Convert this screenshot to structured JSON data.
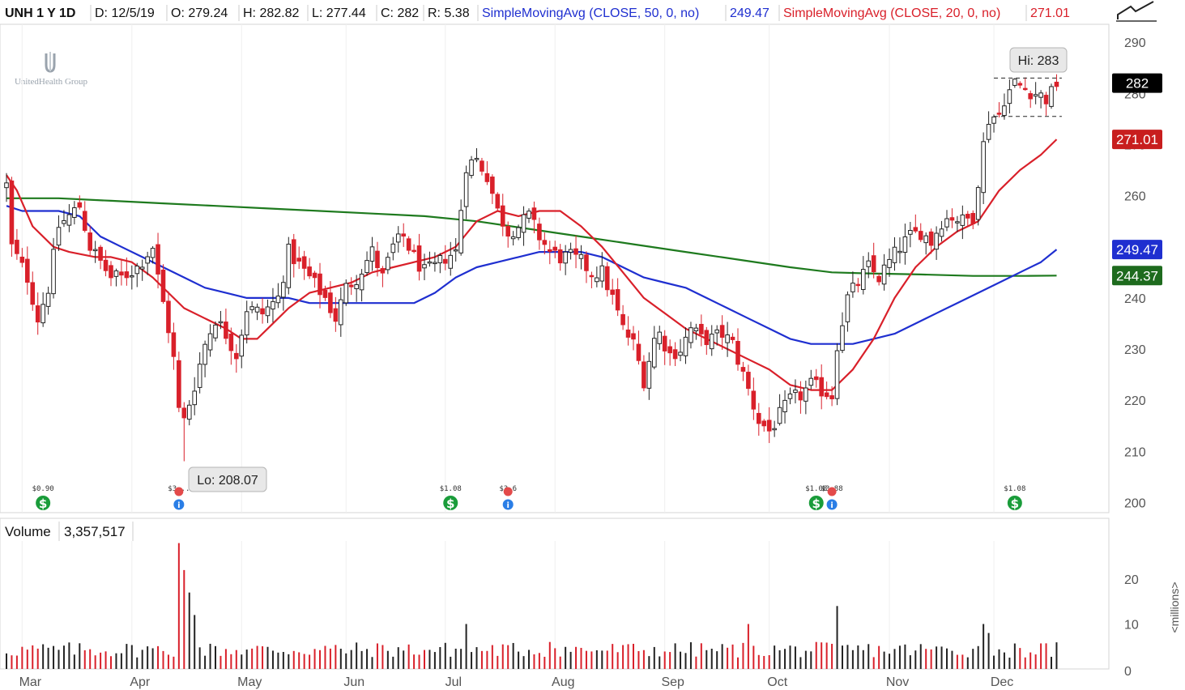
{
  "header": {
    "symbol": "UNH 1 Y 1D",
    "date": "D: 12/5/19",
    "open": "O: 279.24",
    "high": "H: 282.82",
    "low": "L: 277.44",
    "close": "C: 282",
    "range": "R: 5.38",
    "sma50_label": "SimpleMovingAvg (CLOSE, 50, 0, no)",
    "sma50_value": "249.47",
    "sma20_label": "SimpleMovingAvg (CLOSE, 20, 0, no)",
    "sma20_value": "271.01"
  },
  "logo_text": "UnitedHealth Group",
  "price_badges": {
    "last": "282",
    "sma20": "271.01",
    "sma50": "249.47",
    "sma200": "244.37"
  },
  "callouts": {
    "high": "Hi: 283",
    "low": "Lo: 208.07"
  },
  "volume_panel": {
    "label": "Volume",
    "value": "3,357,517",
    "unit": "<millions>"
  },
  "colors": {
    "up": "#222222",
    "down": "#d9202a",
    "sma20": "#d9202a",
    "sma50": "#1f2fd0",
    "sma200": "#1e7a1e",
    "badge_last": "#000000",
    "badge_sma20": "#c81e1e",
    "badge_sma50": "#1f2fd0",
    "badge_sma200": "#1e6b1e"
  },
  "events": [
    {
      "type": "dividend",
      "label": "$0.90",
      "day": 7
    },
    {
      "type": "earnings",
      "label": "$3...",
      "day": 33
    },
    {
      "type": "dividend",
      "label": "$1.08",
      "day": 85
    },
    {
      "type": "earnings",
      "label": "$3.6",
      "day": 96
    },
    {
      "type": "dividend",
      "label": "$1.08",
      "day": 155
    },
    {
      "type": "earnings",
      "label": "$3.88",
      "day": 158
    },
    {
      "type": "dividend",
      "label": "$1.08",
      "day": 193
    }
  ],
  "chart_data": {
    "type": "candlestick",
    "x_tick_labels": [
      "Mar",
      "Apr",
      "May",
      "Jun",
      "Jul",
      "Aug",
      "Sep",
      "Oct",
      "Nov",
      "Dec"
    ],
    "month_start_days": [
      3,
      24,
      45,
      65,
      84,
      105,
      126,
      146,
      169,
      189
    ],
    "price_axis_ticks": [
      200,
      210,
      220,
      230,
      240,
      250,
      260,
      270,
      280,
      290
    ],
    "price_ylim": [
      200,
      293.7
    ],
    "volume_axis_ticks": [
      10,
      20
    ],
    "volume_ylim": [
      0,
      28.3
    ],
    "volume_unit": "millions",
    "high": 283,
    "low": 208.07,
    "anchors": [
      [
        0,
        262
      ],
      [
        1,
        250
      ],
      [
        4,
        244
      ],
      [
        6,
        236
      ],
      [
        8,
        242
      ],
      [
        10,
        254
      ],
      [
        14,
        258
      ],
      [
        16,
        250
      ],
      [
        20,
        244
      ],
      [
        22,
        244
      ],
      [
        25,
        246
      ],
      [
        28,
        250
      ],
      [
        29,
        244
      ],
      [
        31,
        234
      ],
      [
        32,
        228
      ],
      [
        33,
        218
      ],
      [
        34,
        216
      ],
      [
        36,
        223
      ],
      [
        38,
        231
      ],
      [
        40,
        236
      ],
      [
        42,
        233
      ],
      [
        44,
        229
      ],
      [
        46,
        238
      ],
      [
        49,
        237
      ],
      [
        52,
        240
      ],
      [
        54,
        249
      ],
      [
        58,
        244
      ],
      [
        61,
        240
      ],
      [
        63,
        236
      ],
      [
        65,
        242
      ],
      [
        67,
        244
      ],
      [
        70,
        249
      ],
      [
        72,
        244
      ],
      [
        74,
        250
      ],
      [
        76,
        252
      ],
      [
        78,
        248
      ],
      [
        80,
        245
      ],
      [
        82,
        246
      ],
      [
        84,
        248
      ],
      [
        86,
        249
      ],
      [
        88,
        266
      ],
      [
        90,
        267
      ],
      [
        92,
        264
      ],
      [
        94,
        257
      ],
      [
        96,
        253
      ],
      [
        98,
        254
      ],
      [
        100,
        256
      ],
      [
        102,
        252
      ],
      [
        104,
        249
      ],
      [
        106,
        248
      ],
      [
        108,
        248
      ],
      [
        110,
        247
      ],
      [
        112,
        245
      ],
      [
        114,
        245
      ],
      [
        116,
        240
      ],
      [
        118,
        234
      ],
      [
        120,
        231
      ],
      [
        122,
        224
      ],
      [
        124,
        232
      ],
      [
        125,
        233
      ],
      [
        127,
        229
      ],
      [
        129,
        230
      ],
      [
        131,
        234
      ],
      [
        133,
        232
      ],
      [
        135,
        232
      ],
      [
        137,
        233
      ],
      [
        139,
        231
      ],
      [
        140,
        228
      ],
      [
        142,
        222
      ],
      [
        144,
        216
      ],
      [
        146,
        214
      ],
      [
        148,
        217
      ],
      [
        150,
        220
      ],
      [
        152,
        221
      ],
      [
        154,
        223
      ],
      [
        156,
        222
      ],
      [
        158,
        221
      ],
      [
        159,
        231
      ],
      [
        161,
        240
      ],
      [
        163,
        243
      ],
      [
        165,
        246
      ],
      [
        167,
        244
      ],
      [
        169,
        247
      ],
      [
        171,
        250
      ],
      [
        173,
        252
      ],
      [
        175,
        253
      ],
      [
        177,
        251
      ],
      [
        179,
        255
      ],
      [
        181,
        256
      ],
      [
        183,
        255
      ],
      [
        185,
        256
      ],
      [
        187,
        270
      ],
      [
        188,
        275
      ],
      [
        190,
        276
      ],
      [
        191,
        279
      ],
      [
        193,
        282
      ],
      [
        195,
        281
      ],
      [
        197,
        280
      ],
      [
        199,
        279
      ],
      [
        200,
        280
      ],
      [
        201,
        282
      ]
    ],
    "sma20_points": [
      [
        0,
        264
      ],
      [
        2,
        261
      ],
      [
        5,
        254
      ],
      [
        9,
        250
      ],
      [
        12,
        249
      ],
      [
        17,
        248
      ],
      [
        20,
        248
      ],
      [
        24,
        247
      ],
      [
        28,
        244
      ],
      [
        31,
        241
      ],
      [
        34,
        238
      ],
      [
        38,
        236
      ],
      [
        42,
        234
      ],
      [
        45,
        232
      ],
      [
        48,
        232
      ],
      [
        50,
        234
      ],
      [
        54,
        238
      ],
      [
        58,
        241
      ],
      [
        62,
        242
      ],
      [
        66,
        243
      ],
      [
        70,
        245
      ],
      [
        74,
        246
      ],
      [
        78,
        247
      ],
      [
        82,
        248
      ],
      [
        86,
        250
      ],
      [
        90,
        255
      ],
      [
        94,
        257
      ],
      [
        98,
        256
      ],
      [
        102,
        257
      ],
      [
        106,
        257
      ],
      [
        110,
        254
      ],
      [
        114,
        250
      ],
      [
        118,
        245
      ],
      [
        122,
        240
      ],
      [
        126,
        237
      ],
      [
        130,
        234
      ],
      [
        134,
        232
      ],
      [
        138,
        230
      ],
      [
        142,
        228
      ],
      [
        146,
        226
      ],
      [
        150,
        223
      ],
      [
        154,
        222
      ],
      [
        158,
        222
      ],
      [
        162,
        226
      ],
      [
        166,
        232
      ],
      [
        170,
        240
      ],
      [
        174,
        246
      ],
      [
        178,
        250
      ],
      [
        182,
        253
      ],
      [
        186,
        255
      ],
      [
        190,
        261
      ],
      [
        194,
        265
      ],
      [
        198,
        268
      ],
      [
        201,
        271
      ]
    ],
    "sma50_points": [
      [
        0,
        258
      ],
      [
        3,
        257
      ],
      [
        6,
        257
      ],
      [
        10,
        257
      ],
      [
        14,
        256
      ],
      [
        18,
        252
      ],
      [
        22,
        250
      ],
      [
        26,
        248
      ],
      [
        30,
        246
      ],
      [
        34,
        244
      ],
      [
        38,
        242
      ],
      [
        42,
        241
      ],
      [
        46,
        240
      ],
      [
        50,
        240
      ],
      [
        54,
        240
      ],
      [
        58,
        239
      ],
      [
        62,
        239
      ],
      [
        66,
        239
      ],
      [
        70,
        239
      ],
      [
        74,
        239
      ],
      [
        78,
        239
      ],
      [
        82,
        241
      ],
      [
        86,
        244
      ],
      [
        90,
        246
      ],
      [
        94,
        247
      ],
      [
        98,
        248
      ],
      [
        102,
        249
      ],
      [
        106,
        249
      ],
      [
        110,
        249
      ],
      [
        114,
        248
      ],
      [
        118,
        246
      ],
      [
        122,
        244
      ],
      [
        126,
        243
      ],
      [
        130,
        242
      ],
      [
        134,
        240
      ],
      [
        138,
        238
      ],
      [
        142,
        236
      ],
      [
        146,
        234
      ],
      [
        150,
        232
      ],
      [
        154,
        231
      ],
      [
        158,
        231
      ],
      [
        162,
        231
      ],
      [
        166,
        232
      ],
      [
        170,
        233
      ],
      [
        174,
        235
      ],
      [
        178,
        237
      ],
      [
        182,
        239
      ],
      [
        186,
        241
      ],
      [
        190,
        243
      ],
      [
        194,
        245
      ],
      [
        198,
        247
      ],
      [
        201,
        249.47
      ]
    ],
    "sma200_points": [
      [
        0,
        259.5
      ],
      [
        10,
        259.5
      ],
      [
        20,
        259
      ],
      [
        30,
        258.5
      ],
      [
        40,
        258
      ],
      [
        50,
        257.5
      ],
      [
        60,
        257
      ],
      [
        70,
        256.5
      ],
      [
        80,
        256
      ],
      [
        90,
        255
      ],
      [
        100,
        253.5
      ],
      [
        110,
        252
      ],
      [
        120,
        250.5
      ],
      [
        130,
        249
      ],
      [
        140,
        247.5
      ],
      [
        150,
        246
      ],
      [
        158,
        245
      ],
      [
        165,
        244.8
      ],
      [
        175,
        244.6
      ],
      [
        185,
        244.3
      ],
      [
        195,
        244.3
      ],
      [
        201,
        244.37
      ]
    ],
    "volume_spikes": [
      [
        33,
        28
      ],
      [
        34,
        22
      ],
      [
        35,
        17
      ],
      [
        36,
        12
      ],
      [
        88,
        10
      ],
      [
        104,
        6
      ],
      [
        142,
        10
      ],
      [
        159,
        14
      ],
      [
        187,
        10
      ],
      [
        188,
        8
      ]
    ]
  }
}
